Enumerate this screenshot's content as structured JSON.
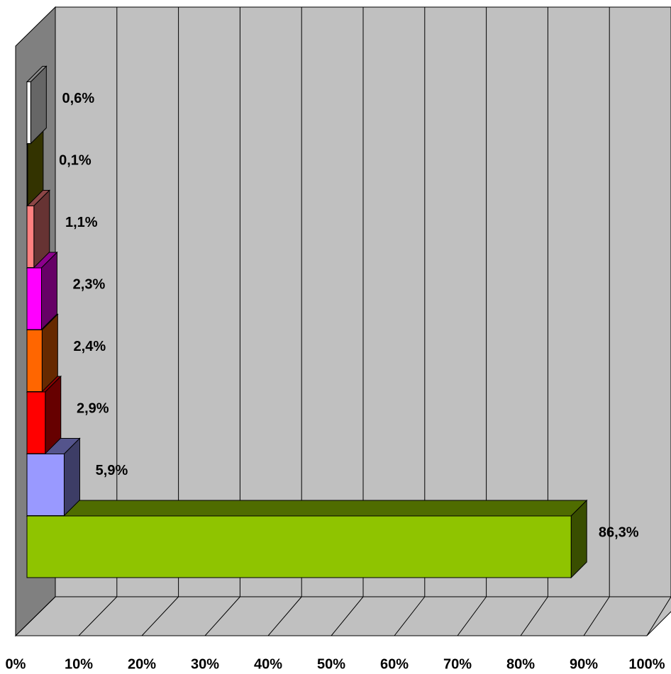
{
  "chart_data": {
    "type": "bar3d_horizontal",
    "values": [
      86.3,
      5.9,
      2.9,
      2.4,
      2.3,
      1.1,
      0.1,
      0.6
    ],
    "value_labels": [
      "86,3%",
      "5,9%",
      "2,9%",
      "2,4%",
      "2,3%",
      "1,1%",
      "0,1%",
      "0,6%"
    ],
    "colors": [
      "#8fc400",
      "#9999ff",
      "#ff0000",
      "#ff6600",
      "#ff00ff",
      "#ff8080",
      "#808000",
      "#ffffff"
    ],
    "xlim": [
      0,
      100
    ],
    "xticks": [
      {
        "value": 0,
        "label": "0%"
      },
      {
        "value": 10,
        "label": "10%"
      },
      {
        "value": 20,
        "label": "20%"
      },
      {
        "value": 30,
        "label": "30%"
      },
      {
        "value": 40,
        "label": "40%"
      },
      {
        "value": 50,
        "label": "50%"
      },
      {
        "value": 60,
        "label": "60%"
      },
      {
        "value": 70,
        "label": "70%"
      },
      {
        "value": 80,
        "label": "80%"
      },
      {
        "value": 90,
        "label": "90%"
      },
      {
        "value": 100,
        "label": "100%"
      }
    ],
    "grid": true
  }
}
